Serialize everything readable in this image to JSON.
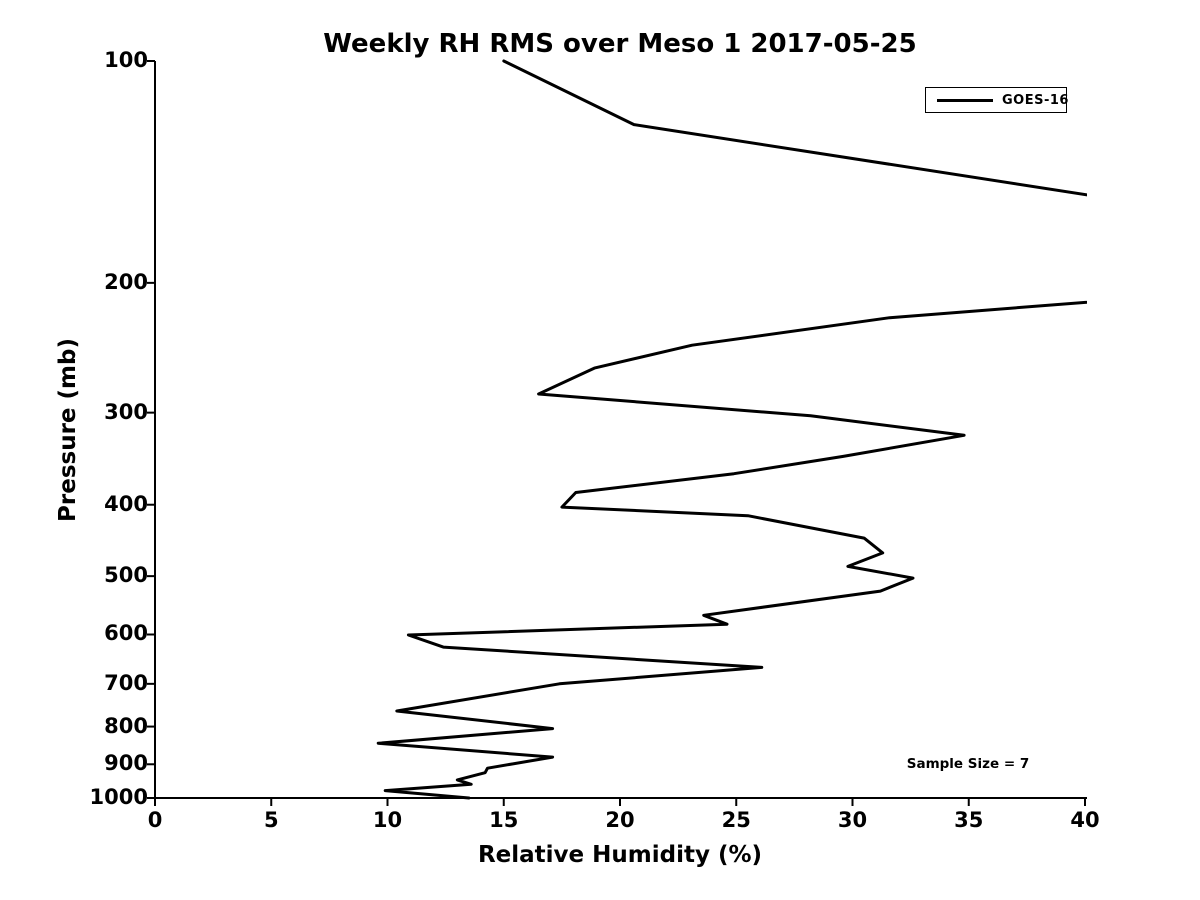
{
  "chart_data": {
    "type": "line",
    "title": "Weekly RH RMS over Meso 1 2017-05-25",
    "xlabel": "Relative Humidity (%)",
    "ylabel": "Pressure (mb)",
    "xlim": [
      0,
      40
    ],
    "ylim": [
      100,
      1000
    ],
    "yscale": "log",
    "y_axis_inverted": true,
    "grid": false,
    "xticks": [
      0,
      5,
      10,
      15,
      20,
      25,
      30,
      35,
      40
    ],
    "yticks": [
      100,
      200,
      300,
      400,
      500,
      600,
      700,
      800,
      900,
      1000
    ],
    "legend": {
      "position": "upper right",
      "entries": [
        "GOES-16"
      ]
    },
    "annotation": "Sample Size = 7",
    "line_color": "#000000",
    "line_width": 3,
    "clipped_segments_exceed_xmax": true,
    "series": [
      {
        "name": "GOES-16",
        "points_rh_pressure": [
          [
            15.0,
            100
          ],
          [
            20.6,
            122
          ],
          [
            43.0,
            157
          ],
          [
            43.0,
            209
          ],
          [
            31.6,
            223
          ],
          [
            23.1,
            243
          ],
          [
            18.9,
            261
          ],
          [
            16.5,
            283
          ],
          [
            28.2,
            303
          ],
          [
            34.8,
            322
          ],
          [
            29.6,
            344
          ],
          [
            24.9,
            363
          ],
          [
            18.1,
            385
          ],
          [
            17.5,
            403
          ],
          [
            25.5,
            414
          ],
          [
            30.5,
            444
          ],
          [
            31.3,
            465
          ],
          [
            29.8,
            485
          ],
          [
            32.6,
            503
          ],
          [
            31.2,
            524
          ],
          [
            23.6,
            565
          ],
          [
            24.6,
            581
          ],
          [
            10.9,
            601
          ],
          [
            12.4,
            624
          ],
          [
            26.1,
            665
          ],
          [
            17.4,
            700
          ],
          [
            10.4,
            762
          ],
          [
            17.1,
            805
          ],
          [
            9.6,
            843
          ],
          [
            17.1,
            880
          ],
          [
            14.3,
            911
          ],
          [
            14.2,
            924
          ],
          [
            13.0,
            945
          ],
          [
            13.6,
            958
          ],
          [
            9.9,
            977
          ],
          [
            13.5,
            1000
          ]
        ]
      }
    ]
  }
}
